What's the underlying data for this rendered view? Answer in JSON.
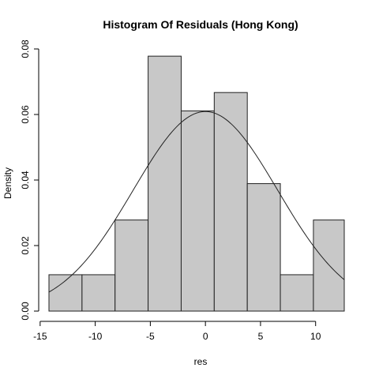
{
  "chart_data": {
    "type": "bar",
    "subtype": "histogram",
    "title": "Histogram Of Residuals (Hong Kong)",
    "xlabel": "res",
    "ylabel": "Density",
    "xlim": [
      -14.2,
      12.6
    ],
    "ylim": [
      0,
      0.08
    ],
    "x_ticks": [
      -15,
      -10,
      -5,
      0,
      5,
      10
    ],
    "x_tick_labels": [
      "-15",
      "-10",
      "-5",
      "0",
      "5",
      "10"
    ],
    "y_ticks": [
      0,
      0.02,
      0.04,
      0.06,
      0.08
    ],
    "y_tick_labels": [
      "0.00",
      "0.02",
      "0.04",
      "0.06",
      "0.08"
    ],
    "bins": [
      {
        "x0": -14.2,
        "x1": -11.2,
        "density": 0.0111
      },
      {
        "x0": -11.2,
        "x1": -8.2,
        "density": 0.0111
      },
      {
        "x0": -8.2,
        "x1": -5.2,
        "density": 0.0278
      },
      {
        "x0": -5.2,
        "x1": -2.2,
        "density": 0.0778
      },
      {
        "x0": -2.2,
        "x1": 0.8,
        "density": 0.0611
      },
      {
        "x0": 0.8,
        "x1": 3.8,
        "density": 0.0667
      },
      {
        "x0": 3.8,
        "x1": 6.8,
        "density": 0.0389
      },
      {
        "x0": 6.8,
        "x1": 9.8,
        "density": 0.0111
      },
      {
        "x0": 9.8,
        "x1": 12.8,
        "density": 0.0278
      }
    ],
    "normal_curve": {
      "mean": 0,
      "sd": 6.55
    },
    "grid": false,
    "bar_color": "#c8c8c8",
    "line_color": "#222222"
  }
}
